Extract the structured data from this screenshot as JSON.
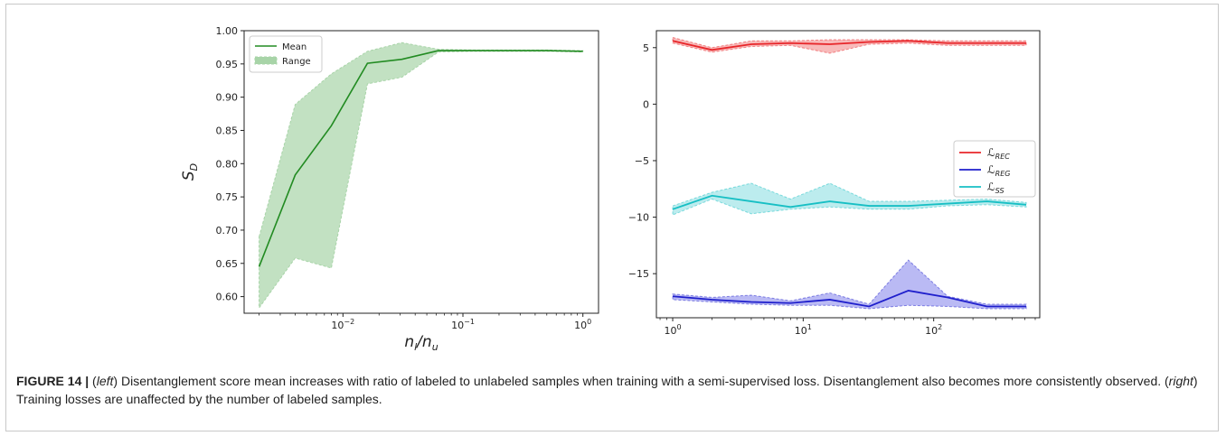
{
  "chart_data": [
    {
      "type": "line",
      "xscale": "log",
      "xlabel": "n_l/n_u",
      "ylabel": "S_D",
      "xlim": [
        0.0015,
        1.35
      ],
      "ylim": [
        0.575,
        1.0
      ],
      "xticks": [
        {
          "value": 0.01,
          "label": "10",
          "exp": "−2"
        },
        {
          "value": 0.1,
          "label": "10",
          "exp": "−1"
        },
        {
          "value": 1,
          "label": "10",
          "exp": "0"
        }
      ],
      "yticks": [
        0.6,
        0.65,
        0.7,
        0.75,
        0.8,
        0.85,
        0.9,
        0.95,
        1.0
      ],
      "ytick_labels": [
        "0.60",
        "0.65",
        "0.70",
        "0.75",
        "0.80",
        "0.85",
        "0.90",
        "0.95",
        "1.00"
      ],
      "legend_position": "top-left",
      "series": [
        {
          "name": "Mean",
          "kind": "line",
          "color": "#228b22",
          "x": [
            0.002,
            0.004,
            0.008,
            0.016,
            0.031,
            0.0625,
            0.125,
            0.25,
            0.5,
            1.0
          ],
          "values": [
            0.645,
            0.783,
            0.857,
            0.951,
            0.957,
            0.97,
            0.97,
            0.97,
            0.97,
            0.969
          ]
        },
        {
          "name": "Range",
          "kind": "band",
          "color": "#a8d4a8",
          "x": [
            0.002,
            0.004,
            0.008,
            0.016,
            0.031,
            0.0625,
            0.125,
            0.25,
            0.5,
            1.0
          ],
          "upper": [
            0.69,
            0.889,
            0.935,
            0.969,
            0.982,
            0.972,
            0.971,
            0.971,
            0.971,
            0.97
          ],
          "lower": [
            0.583,
            0.658,
            0.643,
            0.92,
            0.93,
            0.968,
            0.969,
            0.969,
            0.969,
            0.968
          ]
        }
      ]
    },
    {
      "type": "line",
      "xscale": "log",
      "xlabel": "",
      "ylabel": "",
      "xlim": [
        0.75,
        650
      ],
      "ylim": [
        -18.9,
        6.5
      ],
      "xticks": [
        {
          "value": 1,
          "label": "10",
          "exp": "0"
        },
        {
          "value": 10,
          "label": "10",
          "exp": "1"
        },
        {
          "value": 100,
          "label": "10",
          "exp": "2"
        }
      ],
      "yticks": [
        5,
        0,
        -5,
        -10,
        -15
      ],
      "ytick_labels": [
        "5",
        "0",
        "−5",
        "−10",
        "−15"
      ],
      "legend_position": "center-right",
      "series": [
        {
          "name": "REC",
          "kind": "line_band",
          "color": "#e8262a",
          "fill": "#f5a3a3",
          "x": [
            1,
            2,
            4,
            8,
            16,
            32,
            64,
            128,
            256,
            512
          ],
          "values": [
            5.6,
            4.8,
            5.3,
            5.4,
            5.3,
            5.5,
            5.6,
            5.4,
            5.4,
            5.4
          ],
          "upper": [
            5.9,
            5.0,
            5.6,
            5.6,
            5.7,
            5.7,
            5.7,
            5.6,
            5.6,
            5.6
          ],
          "lower": [
            5.4,
            4.6,
            5.1,
            5.2,
            4.5,
            5.3,
            5.4,
            5.2,
            5.2,
            5.2
          ]
        },
        {
          "name": "REG",
          "kind": "line_band",
          "color": "#1f1fcc",
          "fill": "#a3a3f0",
          "x": [
            1,
            2,
            4,
            8,
            16,
            32,
            64,
            128,
            256,
            512
          ],
          "values": [
            -17.0,
            -17.3,
            -17.5,
            -17.6,
            -17.3,
            -17.9,
            -16.5,
            -17.1,
            -17.9,
            -17.9
          ],
          "upper": [
            -16.8,
            -17.1,
            -16.9,
            -17.4,
            -16.7,
            -17.7,
            -13.8,
            -17.0,
            -17.7,
            -17.7
          ],
          "lower": [
            -17.3,
            -17.5,
            -17.7,
            -17.8,
            -17.8,
            -18.1,
            -17.8,
            -17.9,
            -18.1,
            -18.1
          ]
        },
        {
          "name": "SS",
          "kind": "line_band",
          "color": "#17bfc4",
          "fill": "#a6e6e8",
          "x": [
            1,
            2,
            4,
            8,
            16,
            32,
            64,
            128,
            256,
            512
          ],
          "values": [
            -9.3,
            -8.1,
            -8.6,
            -9.1,
            -8.6,
            -9.0,
            -9.0,
            -8.8,
            -8.6,
            -8.9
          ],
          "upper": [
            -9.0,
            -7.8,
            -7.0,
            -8.4,
            -7.0,
            -8.6,
            -8.6,
            -8.5,
            -8.4,
            -8.7
          ],
          "lower": [
            -9.8,
            -8.4,
            -9.7,
            -9.3,
            -9.1,
            -9.3,
            -9.3,
            -9.0,
            -8.9,
            -9.1
          ]
        }
      ]
    }
  ],
  "caption": {
    "figure_label": "FIGURE 14 |",
    "open_paren_1": " (",
    "left_word": "left",
    "text_1": ") Disentanglement score mean increases with ratio of labeled to unlabeled samples when training with a semi-supervised loss. Disentanglement also becomes more consistently observed. (",
    "right_word": "right",
    "text_2": ") Training losses are unaffected by the number of labeled samples."
  }
}
